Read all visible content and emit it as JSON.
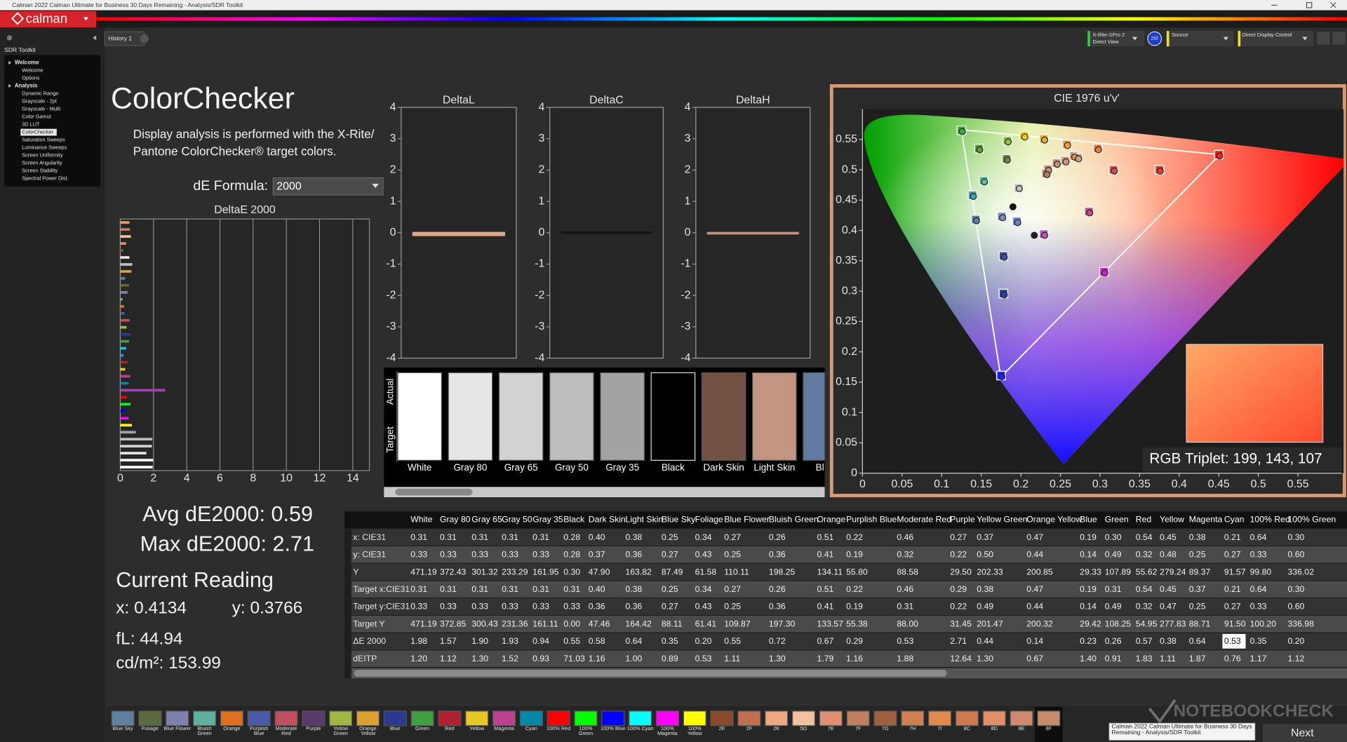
{
  "window": {
    "title": "Calman 2022 Calman Ultimate for Business 30 Days Remaining  - Analysis/SDR Toolkit",
    "logo": "calman"
  },
  "toolbar": {
    "tabs": [
      "History 1"
    ],
    "device": [
      "X-Rite i1Pro 2",
      "Direct View"
    ],
    "badge": "233",
    "source": "Source",
    "control": "Direct Display Control"
  },
  "sidebar": {
    "title": "SDR Toolkit",
    "groups": [
      {
        "label": "Welcome",
        "children": [
          "Welcome",
          "Options"
        ]
      },
      {
        "label": "Analysis",
        "children": [
          "Dynamic Range",
          "Grayscale - 2pt",
          "Grayscale - Multi",
          "Color Gamut",
          "3D LUT",
          "ColorChecker",
          "Saturation Sweeps",
          "Luminance Sweeps",
          "Screen Uniformity",
          "Screen Angularity",
          "Screen Stability",
          "Spectral Power Dist."
        ]
      }
    ],
    "selected": "ColorChecker"
  },
  "page": {
    "heading": "ColorChecker",
    "description": [
      "Display analysis is performed with the X-Rite/",
      "Pantone ColorChecker® target colors."
    ],
    "formula_label": "dE Formula:",
    "formula_value": "2000"
  },
  "stats": {
    "avg": "Avg dE2000: 0.59",
    "max": "Max dE2000: 2.71",
    "reading_title": "Current Reading",
    "x": "x: 0.4134",
    "y": "y: 0.3766",
    "fl": "fL: 44.94",
    "cdm2": "cd/m²: 153.99"
  },
  "swatches": {
    "side_labels": [
      "Actual",
      "Target"
    ],
    "items": [
      {
        "label": "White",
        "color": "#ffffff"
      },
      {
        "label": "Gray 80",
        "color": "#e6e6e6"
      },
      {
        "label": "Gray 65",
        "color": "#d2d2d2"
      },
      {
        "label": "Gray 50",
        "color": "#bdbdbd"
      },
      {
        "label": "Gray 35",
        "color": "#a3a3a3"
      },
      {
        "label": "Black",
        "color": "#000000"
      },
      {
        "label": "Dark Skin",
        "color": "#735244"
      },
      {
        "label": "Light Skin",
        "color": "#c29682"
      },
      {
        "label": "Blue",
        "color": "#627a9d"
      }
    ]
  },
  "table": {
    "columns": [
      "White",
      "Gray 80",
      "Gray 65",
      "Gray 50",
      "Gray 35",
      "Black",
      "Dark Skin",
      "Light Skin",
      "Blue Sky",
      "Foliage",
      "Blue Flower",
      "Bluish Green",
      "Orange",
      "Purplish Blue",
      "Moderate Red",
      "Purple",
      "Yellow Green",
      "Orange Yellow",
      "Blue",
      "Green",
      "Red",
      "Yellow",
      "Magenta",
      "Cyan",
      "100% Red",
      "100% Green"
    ],
    "rows": [
      {
        "label": "x: CIE31",
        "cells": [
          "0.31",
          "0.31",
          "0.31",
          "0.31",
          "0.31",
          "0.28",
          "0.40",
          "0.38",
          "0.25",
          "0.34",
          "0.27",
          "0.26",
          "0.51",
          "0.22",
          "0.46",
          "0.27",
          "0.37",
          "0.47",
          "0.19",
          "0.30",
          "0.54",
          "0.45",
          "0.38",
          "0.21",
          "0.64",
          "0.30"
        ]
      },
      {
        "label": "y: CIE31",
        "cells": [
          "0.33",
          "0.33",
          "0.33",
          "0.33",
          "0.33",
          "0.28",
          "0.37",
          "0.36",
          "0.27",
          "0.43",
          "0.25",
          "0.36",
          "0.41",
          "0.19",
          "0.32",
          "0.22",
          "0.50",
          "0.44",
          "0.14",
          "0.49",
          "0.32",
          "0.48",
          "0.25",
          "0.27",
          "0.33",
          "0.60"
        ]
      },
      {
        "label": "Y",
        "cells": [
          "471.19",
          "372.43",
          "301.32",
          "233.29",
          "161.95",
          "0.30",
          "47.90",
          "163.82",
          "87.49",
          "61.58",
          "110.11",
          "198.25",
          "134.11",
          "55.80",
          "88.58",
          "29.50",
          "202.33",
          "200.85",
          "29.33",
          "107.89",
          "55.62",
          "279.24",
          "89.37",
          "91.57",
          "99.80",
          "336.02"
        ]
      },
      {
        "label": "Target x:CIE31",
        "cells": [
          "0.31",
          "0.31",
          "0.31",
          "0.31",
          "0.31",
          "0.31",
          "0.40",
          "0.38",
          "0.25",
          "0.34",
          "0.27",
          "0.26",
          "0.51",
          "0.22",
          "0.46",
          "0.29",
          "0.38",
          "0.47",
          "0.19",
          "0.31",
          "0.54",
          "0.45",
          "0.37",
          "0.21",
          "0.64",
          "0.30"
        ]
      },
      {
        "label": "Target y:CIE31",
        "cells": [
          "0.33",
          "0.33",
          "0.33",
          "0.33",
          "0.33",
          "0.33",
          "0.36",
          "0.36",
          "0.27",
          "0.43",
          "0.25",
          "0.36",
          "0.41",
          "0.19",
          "0.31",
          "0.22",
          "0.49",
          "0.44",
          "0.14",
          "0.49",
          "0.32",
          "0.47",
          "0.25",
          "0.27",
          "0.33",
          "0.60"
        ]
      },
      {
        "label": "Target Y",
        "cells": [
          "471.19",
          "372.85",
          "300.43",
          "231.36",
          "161.11",
          "0.00",
          "47.46",
          "164.42",
          "88.11",
          "61.41",
          "109.87",
          "197.30",
          "133.57",
          "55.38",
          "88.00",
          "31.45",
          "201.47",
          "200.32",
          "29.42",
          "108.25",
          "54.95",
          "277.83",
          "88.71",
          "91.50",
          "100.20",
          "336.98"
        ]
      },
      {
        "label": "ΔE 2000",
        "cells": [
          "1.98",
          "1.57",
          "1.90",
          "1.93",
          "0.94",
          "0.55",
          "0.58",
          "0.64",
          "0.35",
          "0.20",
          "0.55",
          "0.72",
          "0.67",
          "0.29",
          "0.53",
          "2.71",
          "0.44",
          "0.14",
          "0.23",
          "0.26",
          "0.57",
          "0.38",
          "0.64",
          "0.53",
          "0.35",
          "0.20"
        ]
      },
      {
        "label": "dEITP",
        "cells": [
          "1.20",
          "1.12",
          "1.30",
          "1.52",
          "0.93",
          "71.03",
          "1.16",
          "1.00",
          "0.89",
          "0.53",
          "1.11",
          "1.30",
          "1.79",
          "1.16",
          "1.88",
          "12.64",
          "1.30",
          "0.67",
          "1.40",
          "0.91",
          "1.83",
          "1.11",
          "1.87",
          "0.76",
          "1.17",
          "1.12"
        ]
      }
    ],
    "highlight": {
      "row": 6,
      "col": 23
    }
  },
  "patch_strip": {
    "items": [
      {
        "label": "Blue Sky",
        "color": "#6080a0"
      },
      {
        "label": "Foliage",
        "color": "#5a6b40"
      },
      {
        "label": "Blue Flower",
        "color": "#8080b0"
      },
      {
        "label": "Bluish Green",
        "color": "#60b0a0"
      },
      {
        "label": "Orange",
        "color": "#e07020"
      },
      {
        "label": "Purplish Blue",
        "color": "#4a5aa8"
      },
      {
        "label": "Moderate Red",
        "color": "#c05060"
      },
      {
        "label": "Purple",
        "color": "#5a3a6a"
      },
      {
        "label": "Yellow Green",
        "color": "#a0b840"
      },
      {
        "label": "Orange Yellow",
        "color": "#e0a030"
      },
      {
        "label": "Blue",
        "color": "#2a3a90"
      },
      {
        "label": "Green",
        "color": "#40a040"
      },
      {
        "label": "Red",
        "color": "#b02030"
      },
      {
        "label": "Yellow",
        "color": "#e8c820"
      },
      {
        "label": "Magenta",
        "color": "#c04090"
      },
      {
        "label": "Cyan",
        "color": "#0088a8"
      },
      {
        "label": "100% Red",
        "color": "#ff0000"
      },
      {
        "label": "100% Green",
        "color": "#00ff00"
      },
      {
        "label": "100% Blue",
        "color": "#0000ff"
      },
      {
        "label": "100% Cyan",
        "color": "#00ffff"
      },
      {
        "label": "100% Magenta",
        "color": "#ff00ff"
      },
      {
        "label": "100% Yellow",
        "color": "#ffff00"
      },
      {
        "label": "2E",
        "color": "#8a4a2a"
      },
      {
        "label": "2F",
        "color": "#c07050"
      },
      {
        "label": "2K",
        "color": "#f0a880"
      },
      {
        "label": "5D",
        "color": "#f0c0a0"
      },
      {
        "label": "7E",
        "color": "#e09070"
      },
      {
        "label": "7F",
        "color": "#c08060"
      },
      {
        "label": "7G",
        "color": "#a06040"
      },
      {
        "label": "7H",
        "color": "#d08050"
      },
      {
        "label": "7I",
        "color": "#e08a50"
      },
      {
        "label": "8C",
        "color": "#d07850"
      },
      {
        "label": "8D",
        "color": "#e09068"
      },
      {
        "label": "8E",
        "color": "#d08870"
      },
      {
        "label": "8F",
        "color": "#c88c6c"
      }
    ],
    "selected": "8F"
  },
  "tooltip": "Calman 2022 Calman Ultimate for Business 30 Days Remaining - Analysis/SDR Toolkit",
  "next": "Next",
  "watermark": "NOTEBOOKCHECK",
  "chart_data": [
    {
      "type": "hbar",
      "title": "DeltaE 2000",
      "values": [
        0.55,
        0.58,
        0.64,
        0.35,
        0.2,
        0.55,
        0.72,
        0.67,
        0.29,
        0.53,
        0.44,
        0.14,
        0.23,
        0.26,
        0.57,
        0.38,
        0.64,
        0.53,
        0.35,
        0.2,
        0.45,
        0.3,
        0.6,
        0.5,
        2.71,
        0.4,
        0.62,
        0.33,
        0.5,
        0.7,
        0.94,
        1.93,
        1.9,
        1.57,
        1.98,
        1.95
      ],
      "colors": [
        "#e0a070",
        "#c08060",
        "#f0c0a0",
        "#e09070",
        "#8a4a2a",
        "#e8e8e8",
        "#c0c0c0",
        "#e0a030",
        "#6080a0",
        "#5a6b40",
        "#8080b0",
        "#60b0a0",
        "#e07020",
        "#4a5aa8",
        "#c05060",
        "#a0b840",
        "#2a3a90",
        "#40a040",
        "#00ccee",
        "#00aaff",
        "#b02030",
        "#e8c820",
        "#c04090",
        "#0088a8",
        "#a040c0",
        "#ff0000",
        "#00ff00",
        "#0000ff",
        "#ff00ff",
        "#ffff00",
        "#a3a3a3",
        "#bdbdbd",
        "#d2d2d2",
        "#e6e6e6",
        "#ffffff",
        "#ffffff"
      ],
      "xlim": [
        0,
        15
      ],
      "xticks": [
        0,
        2,
        4,
        6,
        8,
        10,
        12,
        14
      ],
      "grid": true
    },
    {
      "type": "vbar",
      "title": "DeltaL",
      "values": [
        -0.08
      ],
      "color": "#e0a888",
      "ylim": [
        -4,
        4
      ],
      "yticks": [
        -4,
        -3,
        -2,
        -1,
        0,
        1,
        2,
        3,
        4
      ]
    },
    {
      "type": "vbar",
      "title": "DeltaC",
      "values": [
        0.01
      ],
      "color": "#111111",
      "ylim": [
        -4,
        4
      ],
      "yticks": [
        -4,
        -3,
        -2,
        -1,
        0,
        1,
        2,
        3,
        4
      ]
    },
    {
      "type": "vbar",
      "title": "DeltaH",
      "values": [
        -0.03
      ],
      "color": "#c8927a",
      "ylim": [
        -4,
        4
      ],
      "yticks": [
        -4,
        -3,
        -2,
        -1,
        0,
        1,
        2,
        3,
        4
      ]
    },
    {
      "type": "scatter",
      "title": "CIE 1976 u'v'",
      "xlim": [
        0,
        0.6
      ],
      "ylim": [
        0,
        0.6
      ],
      "xticks": [
        0,
        0.05,
        0.1,
        0.15,
        0.2,
        0.25,
        0.3,
        0.35,
        0.4,
        0.45,
        0.5,
        0.55
      ],
      "yticks": [
        0,
        0.05,
        0.1,
        0.15,
        0.2,
        0.25,
        0.3,
        0.35,
        0.4,
        0.45,
        0.5,
        0.55
      ],
      "series": [
        {
          "marker": "square",
          "x": [
            0.125,
            0.147,
            0.183,
            0.204,
            0.229,
            0.258,
            0.267,
            0.297,
            0.182,
            0.153,
            0.197,
            0.139,
            0.143,
            0.176,
            0.195,
            0.229,
            0.286,
            0.317,
            0.375,
            0.45,
            0.178,
            0.178,
            0.305,
            0.175,
            0.234,
            0.245,
            0.256,
            0.272,
            0.232
          ],
          "values": [
            0.565,
            0.535,
            0.548,
            0.556,
            0.551,
            0.542,
            0.523,
            0.535,
            0.518,
            0.482,
            0.47,
            0.458,
            0.418,
            0.423,
            0.415,
            0.394,
            0.431,
            0.5,
            0.5,
            0.525,
            0.358,
            0.296,
            0.332,
            0.161,
            0.501,
            0.511,
            0.515,
            0.52,
            0.494
          ],
          "colors": [
            "#3caa3c",
            "#5c9a3a",
            "#8cc43c",
            "#e8d020",
            "#e0b030",
            "#e8a040",
            "#d89060",
            "#e0803a",
            "#708a40",
            "#60b898",
            "#c0c0c0",
            "#40a0b0",
            "#5a80a0",
            "#8090c0",
            "#7080c0",
            "#b060b0",
            "#c05080",
            "#d05050",
            "#e04030",
            "#ff2020",
            "#4050a0",
            "#3040a0",
            "#d020d0",
            "#2020ff",
            "#c09070",
            "#c89072",
            "#d09878",
            "#d8a080",
            "#b08068"
          ]
        },
        {
          "marker": "circle",
          "x": [
            0.126,
            0.148,
            0.184,
            0.205,
            0.23,
            0.259,
            0.268,
            0.298,
            0.183,
            0.154,
            0.198,
            0.14,
            0.144,
            0.177,
            0.196,
            0.23,
            0.287,
            0.318,
            0.376,
            0.451,
            0.179,
            0.179,
            0.306,
            0.176,
            0.235,
            0.246,
            0.257,
            0.273,
            0.233,
            0.19,
            0.217
          ],
          "values": [
            0.563,
            0.533,
            0.546,
            0.554,
            0.549,
            0.54,
            0.521,
            0.533,
            0.516,
            0.48,
            0.469,
            0.456,
            0.416,
            0.421,
            0.413,
            0.392,
            0.429,
            0.498,
            0.498,
            0.523,
            0.356,
            0.294,
            0.33,
            0.159,
            0.499,
            0.509,
            0.513,
            0.518,
            0.492,
            0.439,
            0.392
          ],
          "colors": [
            "#3caa3c",
            "#5c9a3a",
            "#8cc43c",
            "#e8d020",
            "#e0b030",
            "#e8a040",
            "#d89060",
            "#e0803a",
            "#708a40",
            "#60b898",
            "#c0c0c0",
            "#40a0b0",
            "#5a80a0",
            "#8090c0",
            "#7080c0",
            "#b060b0",
            "#c05080",
            "#d05050",
            "#e04030",
            "#ff2020",
            "#4050a0",
            "#3040a0",
            "#d020d0",
            "#2020ff",
            "#c09070",
            "#c89072",
            "#d09878",
            "#d8a080",
            "#b08068",
            "#111111",
            "#222222"
          ]
        }
      ],
      "annotation": "RGB Triplet: 199, 143, 107"
    }
  ]
}
